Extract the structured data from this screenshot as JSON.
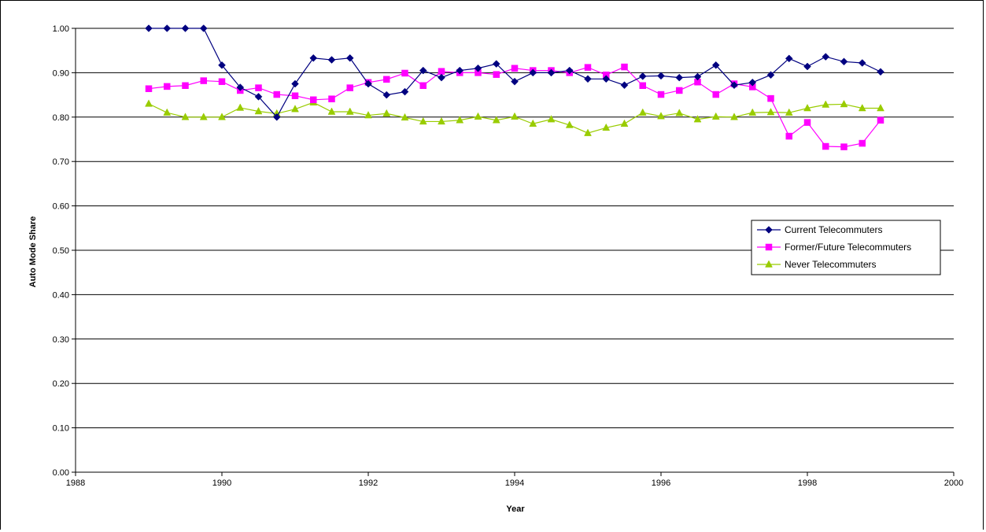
{
  "chart_data": {
    "type": "line",
    "title": "",
    "xlabel": "Year",
    "ylabel": "Auto Mode Share",
    "xlim": [
      1988,
      2000
    ],
    "ylim": [
      0,
      1
    ],
    "x_ticks": [
      "1988",
      "1990",
      "1992",
      "1994",
      "1996",
      "1998",
      "2000"
    ],
    "y_ticks": [
      "0.00",
      "0.10",
      "0.20",
      "0.30",
      "0.40",
      "0.50",
      "0.60",
      "0.70",
      "0.80",
      "0.90",
      "1.00"
    ],
    "grid": "horizontal",
    "legend_position": "right",
    "x": [
      1989.0,
      1989.25,
      1989.5,
      1989.75,
      1990.0,
      1990.25,
      1990.5,
      1990.75,
      1991.0,
      1991.25,
      1991.5,
      1991.75,
      1992.0,
      1992.25,
      1992.5,
      1992.75,
      1993.0,
      1993.25,
      1993.5,
      1993.75,
      1994.0,
      1994.25,
      1994.5,
      1994.75,
      1995.0,
      1995.25,
      1995.5,
      1995.75,
      1996.0,
      1996.25,
      1996.5,
      1996.75,
      1997.0,
      1997.25,
      1997.5,
      1997.75,
      1998.0,
      1998.25,
      1998.5,
      1998.75,
      1999.0
    ],
    "series": [
      {
        "name": "Current Telecommuters",
        "color": "#000080",
        "marker": "diamond",
        "values": [
          1.0,
          1.0,
          1.0,
          1.0,
          0.917,
          0.867,
          0.846,
          0.8,
          0.875,
          0.933,
          0.929,
          0.933,
          0.875,
          0.85,
          0.857,
          0.905,
          0.889,
          0.905,
          0.91,
          0.92,
          0.88,
          0.9,
          0.9,
          0.905,
          0.886,
          0.886,
          0.872,
          0.892,
          0.893,
          0.889,
          0.891,
          0.917,
          0.872,
          0.878,
          0.895,
          0.932,
          0.914,
          0.936,
          0.925,
          0.922,
          0.902
        ]
      },
      {
        "name": "Former/Future Telecommuters",
        "color": "#ff00ff",
        "marker": "square",
        "values": [
          0.864,
          0.869,
          0.871,
          0.882,
          0.88,
          0.86,
          0.866,
          0.851,
          0.848,
          0.839,
          0.841,
          0.866,
          0.878,
          0.885,
          0.899,
          0.871,
          0.903,
          0.9,
          0.9,
          0.896,
          0.91,
          0.905,
          0.905,
          0.9,
          0.912,
          0.895,
          0.913,
          0.871,
          0.851,
          0.86,
          0.879,
          0.851,
          0.875,
          0.868,
          0.842,
          0.757,
          0.788,
          0.734,
          0.733,
          0.741,
          0.793
        ]
      },
      {
        "name": "Never Telecommuters",
        "color": "#99cc00",
        "marker": "triangle",
        "values": [
          0.83,
          0.81,
          0.8,
          0.8,
          0.8,
          0.821,
          0.813,
          0.808,
          0.818,
          0.833,
          0.812,
          0.812,
          0.804,
          0.808,
          0.799,
          0.79,
          0.79,
          0.793,
          0.801,
          0.793,
          0.801,
          0.785,
          0.795,
          0.782,
          0.764,
          0.776,
          0.785,
          0.81,
          0.802,
          0.809,
          0.795,
          0.801,
          0.8,
          0.81,
          0.811,
          0.81,
          0.82,
          0.828,
          0.829,
          0.82,
          0.82
        ]
      }
    ]
  }
}
